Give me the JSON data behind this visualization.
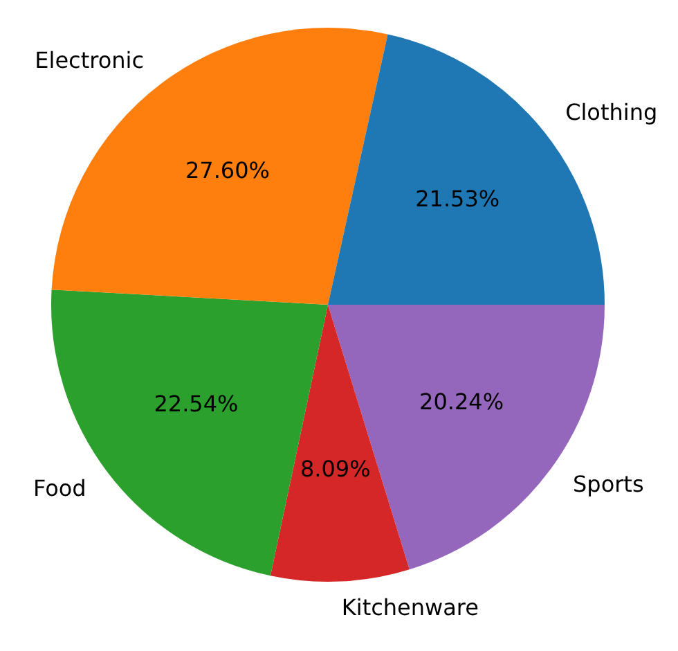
{
  "chart_data": {
    "type": "pie",
    "categories": [
      "Clothing",
      "Electronic",
      "Food",
      "Kitchenware",
      "Sports"
    ],
    "values": [
      21.53,
      27.6,
      22.54,
      8.09,
      20.24
    ],
    "colors": [
      "#1f77b4",
      "#ff7f0e",
      "#2ca02c",
      "#d62728",
      "#9467bd"
    ],
    "value_labels": [
      "21.53%",
      "27.60%",
      "22.54%",
      "8.09%",
      "20.24%"
    ],
    "legend": false
  }
}
